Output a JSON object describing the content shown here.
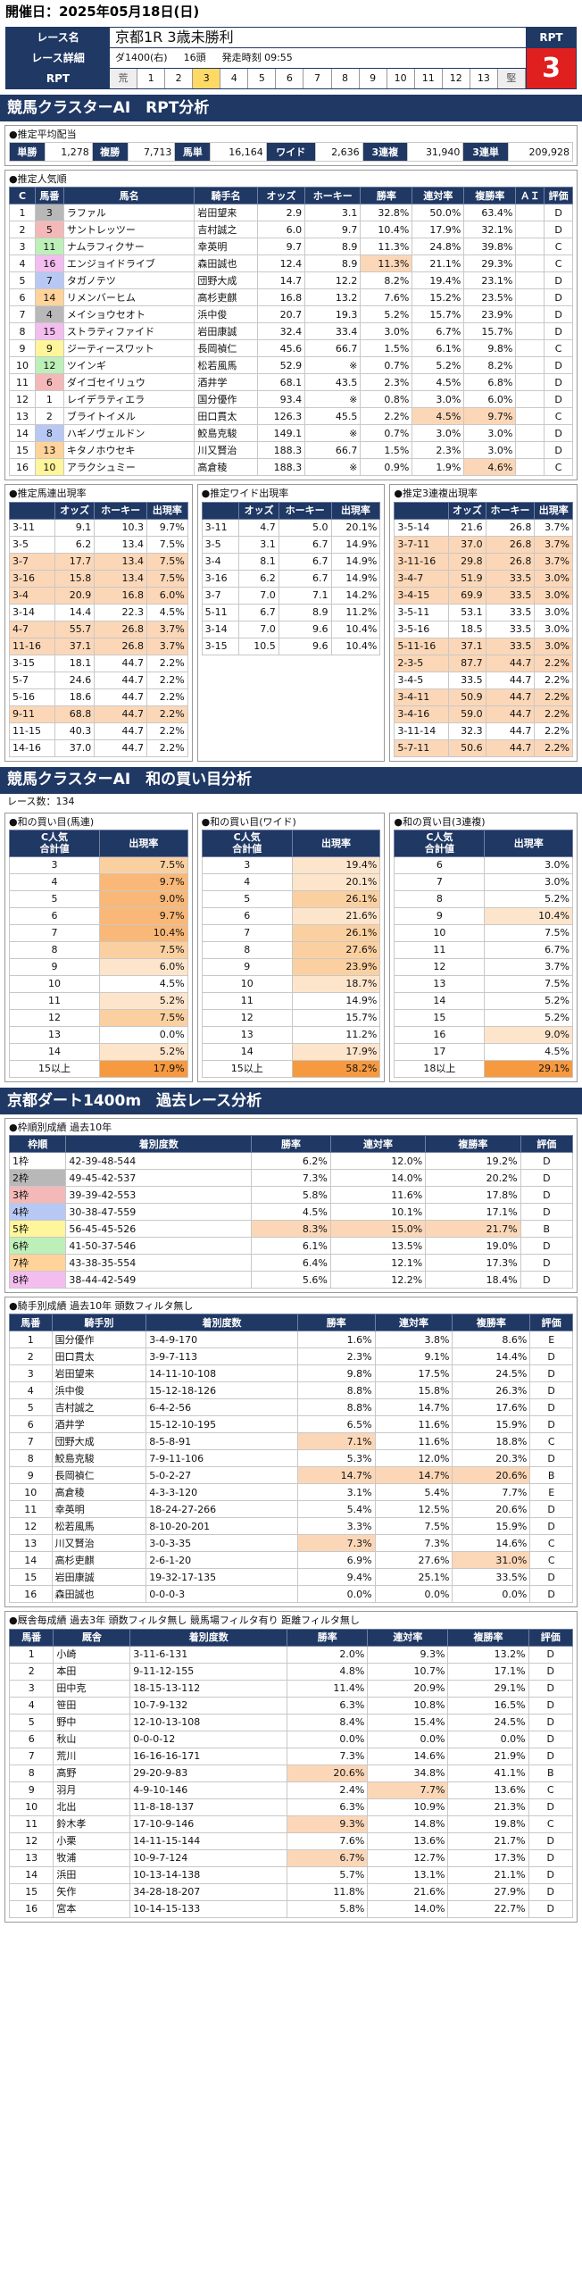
{
  "header": {
    "date": "開催日：2025年05月18日(日)"
  },
  "race": {
    "name_label": "レース名",
    "name": "京都1R 3歳未勝利",
    "detail_label": "レース詳細",
    "course": "ダ1400(右)",
    "heads": "16頭",
    "start": "発走時刻 09:55",
    "rpt_label": "RPT",
    "rpt_cells": [
      "荒",
      "1",
      "2",
      "3",
      "4",
      "5",
      "6",
      "7",
      "8",
      "9",
      "10",
      "11",
      "12",
      "13",
      "堅"
    ],
    "rpt_selected": "3",
    "rpt_value": "3"
  },
  "section1": {
    "title": "競馬クラスターAI　RPT分析"
  },
  "payout": {
    "title": "●推定平均配当",
    "items": [
      {
        "k": "単勝",
        "v": "1,278"
      },
      {
        "k": "複勝",
        "v": "7,713"
      },
      {
        "k": "馬単",
        "v": "16,164"
      },
      {
        "k": "ワイド",
        "v": "2,636"
      },
      {
        "k": "3連複",
        "v": "31,940"
      },
      {
        "k": "3連単",
        "v": "209,928"
      }
    ]
  },
  "popularity": {
    "title": "●推定人気順",
    "headers": [
      "C",
      "馬番",
      "馬名",
      "騎手名",
      "オッズ",
      "ホーキー",
      "勝率",
      "連対率",
      "複勝率",
      "ＡＩ",
      "評価"
    ],
    "rows": [
      [
        "1",
        "3",
        "ラファル",
        "岩田望来",
        "2.9",
        "3.1",
        "32.8%",
        "50.0%",
        "63.4%",
        "",
        "D"
      ],
      [
        "2",
        "5",
        "サントレッツー",
        "吉村誠之",
        "6.0",
        "9.7",
        "10.4%",
        "17.9%",
        "32.1%",
        "",
        "D"
      ],
      [
        "3",
        "11",
        "ナムラフィクサー",
        "幸英明",
        "9.7",
        "8.9",
        "11.3%",
        "24.8%",
        "39.8%",
        "",
        "C"
      ],
      [
        "4",
        "16",
        "エンジョイドライブ",
        "森田誠也",
        "12.4",
        "8.9",
        "11.3%",
        "21.1%",
        "29.3%",
        "",
        "C"
      ],
      [
        "5",
        "7",
        "タガノテツ",
        "団野大成",
        "14.7",
        "12.2",
        "8.2%",
        "19.4%",
        "23.1%",
        "",
        "D"
      ],
      [
        "6",
        "14",
        "リメンバーヒム",
        "高杉吏麒",
        "16.8",
        "13.2",
        "7.6%",
        "15.2%",
        "23.5%",
        "",
        "D"
      ],
      [
        "7",
        "4",
        "メイショウセオト",
        "浜中俊",
        "20.7",
        "19.3",
        "5.2%",
        "15.7%",
        "23.9%",
        "",
        "D"
      ],
      [
        "8",
        "15",
        "ストラティファイド",
        "岩田康誠",
        "32.4",
        "33.4",
        "3.0%",
        "6.7%",
        "15.7%",
        "",
        "D"
      ],
      [
        "9",
        "9",
        "ジーティースワット",
        "長岡禎仁",
        "45.6",
        "66.7",
        "1.5%",
        "6.1%",
        "9.8%",
        "",
        "C"
      ],
      [
        "10",
        "12",
        "ツインギ",
        "松若風馬",
        "52.9",
        "※",
        "0.7%",
        "5.2%",
        "8.2%",
        "",
        "D"
      ],
      [
        "11",
        "6",
        "ダイゴセイリュウ",
        "酒井学",
        "68.1",
        "43.5",
        "2.3%",
        "4.5%",
        "6.8%",
        "",
        "D"
      ],
      [
        "12",
        "1",
        "レイデラティエラ",
        "国分優作",
        "93.4",
        "※",
        "0.8%",
        "3.0%",
        "6.0%",
        "",
        "D"
      ],
      [
        "13",
        "2",
        "ブライトイメル",
        "田口貫太",
        "126.3",
        "45.5",
        "2.2%",
        "4.5%",
        "9.7%",
        "",
        "C"
      ],
      [
        "14",
        "8",
        "ハギノヴェルドン",
        "鮫島克駿",
        "149.1",
        "※",
        "0.7%",
        "3.0%",
        "3.0%",
        "",
        "D"
      ],
      [
        "15",
        "13",
        "キタノホウセキ",
        "川又賢治",
        "188.3",
        "66.7",
        "1.5%",
        "2.3%",
        "3.0%",
        "",
        "D"
      ],
      [
        "16",
        "10",
        "アラクシュミー",
        "高倉稜",
        "188.3",
        "※",
        "0.9%",
        "1.9%",
        "4.6%",
        "",
        "C"
      ]
    ]
  },
  "est_umatan": {
    "title": "●推定馬連出現率",
    "headers": [
      "",
      "オッズ",
      "ホーキー",
      "出現率"
    ],
    "rows": [
      [
        "3-11",
        "9.1",
        "10.3",
        "9.7%"
      ],
      [
        "3-5",
        "6.2",
        "13.4",
        "7.5%"
      ],
      [
        "3-7",
        "17.7",
        "13.4",
        "7.5%"
      ],
      [
        "3-16",
        "15.8",
        "13.4",
        "7.5%"
      ],
      [
        "3-4",
        "20.9",
        "16.8",
        "6.0%"
      ],
      [
        "3-14",
        "14.4",
        "22.3",
        "4.5%"
      ],
      [
        "4-7",
        "55.7",
        "26.8",
        "3.7%"
      ],
      [
        "11-16",
        "37.1",
        "26.8",
        "3.7%"
      ],
      [
        "3-15",
        "18.1",
        "44.7",
        "2.2%"
      ],
      [
        "5-7",
        "24.6",
        "44.7",
        "2.2%"
      ],
      [
        "5-16",
        "18.6",
        "44.7",
        "2.2%"
      ],
      [
        "9-11",
        "68.8",
        "44.7",
        "2.2%"
      ],
      [
        "11-15",
        "40.3",
        "44.7",
        "2.2%"
      ],
      [
        "14-16",
        "37.0",
        "44.7",
        "2.2%"
      ]
    ]
  },
  "est_wide": {
    "title": "●推定ワイド出現率",
    "headers": [
      "",
      "オッズ",
      "ホーキー",
      "出現率"
    ],
    "rows": [
      [
        "3-11",
        "4.7",
        "5.0",
        "20.1%"
      ],
      [
        "3-5",
        "3.1",
        "6.7",
        "14.9%"
      ],
      [
        "3-4",
        "8.1",
        "6.7",
        "14.9%"
      ],
      [
        "3-16",
        "6.2",
        "6.7",
        "14.9%"
      ],
      [
        "3-7",
        "7.0",
        "7.1",
        "14.2%"
      ],
      [
        "5-11",
        "6.7",
        "8.9",
        "11.2%"
      ],
      [
        "3-14",
        "7.0",
        "9.6",
        "10.4%"
      ],
      [
        "3-15",
        "10.5",
        "9.6",
        "10.4%"
      ]
    ]
  },
  "est_sanrenpuku": {
    "title": "●推定3連複出現率",
    "headers": [
      "",
      "オッズ",
      "ホーキー",
      "出現率"
    ],
    "rows": [
      [
        "3-5-14",
        "21.6",
        "26.8",
        "3.7%"
      ],
      [
        "3-7-11",
        "37.0",
        "26.8",
        "3.7%"
      ],
      [
        "3-11-16",
        "29.8",
        "26.8",
        "3.7%"
      ],
      [
        "3-4-7",
        "51.9",
        "33.5",
        "3.0%"
      ],
      [
        "3-4-15",
        "69.9",
        "33.5",
        "3.0%"
      ],
      [
        "3-5-11",
        "53.1",
        "33.5",
        "3.0%"
      ],
      [
        "3-5-16",
        "18.5",
        "33.5",
        "3.0%"
      ],
      [
        "5-11-16",
        "37.1",
        "33.5",
        "3.0%"
      ],
      [
        "2-3-5",
        "87.7",
        "44.7",
        "2.2%"
      ],
      [
        "3-4-5",
        "33.5",
        "44.7",
        "2.2%"
      ],
      [
        "3-4-11",
        "50.9",
        "44.7",
        "2.2%"
      ],
      [
        "3-4-16",
        "59.0",
        "44.7",
        "2.2%"
      ],
      [
        "3-11-14",
        "32.3",
        "44.7",
        "2.2%"
      ],
      [
        "5-7-11",
        "50.6",
        "44.7",
        "2.2%"
      ]
    ]
  },
  "section2": {
    "title": "競馬クラスターAI　和の買い目分析",
    "race_count": "レース数：134"
  },
  "wa_umaren": {
    "title": "●和の買い目(馬連)",
    "h1": "C人気\n合計値",
    "h2": "出現率",
    "rows": [
      [
        "3",
        "7.5%"
      ],
      [
        "4",
        "9.7%"
      ],
      [
        "5",
        "9.0%"
      ],
      [
        "6",
        "9.7%"
      ],
      [
        "7",
        "10.4%"
      ],
      [
        "8",
        "7.5%"
      ],
      [
        "9",
        "6.0%"
      ],
      [
        "10",
        "4.5%"
      ],
      [
        "11",
        "5.2%"
      ],
      [
        "12",
        "7.5%"
      ],
      [
        "13",
        "0.0%"
      ],
      [
        "14",
        "5.2%"
      ],
      [
        "15以上",
        "17.9%"
      ]
    ]
  },
  "wa_wide": {
    "title": "●和の買い目(ワイド)",
    "h1": "C人気\n合計値",
    "h2": "出現率",
    "rows": [
      [
        "3",
        "19.4%"
      ],
      [
        "4",
        "20.1%"
      ],
      [
        "5",
        "26.1%"
      ],
      [
        "6",
        "21.6%"
      ],
      [
        "7",
        "26.1%"
      ],
      [
        "8",
        "27.6%"
      ],
      [
        "9",
        "23.9%"
      ],
      [
        "10",
        "18.7%"
      ],
      [
        "11",
        "14.9%"
      ],
      [
        "12",
        "15.7%"
      ],
      [
        "13",
        "11.2%"
      ],
      [
        "14",
        "17.9%"
      ],
      [
        "15以上",
        "58.2%"
      ]
    ]
  },
  "wa_3renpuku": {
    "title": "●和の買い目(3連複)",
    "h1": "C人気\n合計値",
    "h2": "出現率",
    "rows": [
      [
        "6",
        "3.0%"
      ],
      [
        "7",
        "3.0%"
      ],
      [
        "8",
        "5.2%"
      ],
      [
        "9",
        "10.4%"
      ],
      [
        "10",
        "7.5%"
      ],
      [
        "11",
        "6.7%"
      ],
      [
        "12",
        "3.7%"
      ],
      [
        "13",
        "7.5%"
      ],
      [
        "14",
        "5.2%"
      ],
      [
        "15",
        "5.2%"
      ],
      [
        "16",
        "9.0%"
      ],
      [
        "17",
        "4.5%"
      ],
      [
        "18以上",
        "29.1%"
      ]
    ]
  },
  "section3": {
    "title": "京都ダート1400m　過去レース分析"
  },
  "waku": {
    "title": "●枠順別成績 過去10年",
    "headers": [
      "枠順",
      "着別度数",
      "勝率",
      "連対率",
      "複勝率",
      "評価"
    ],
    "rows": [
      [
        "1枠",
        "42-39-48-544",
        "6.2%",
        "12.0%",
        "19.2%",
        "D"
      ],
      [
        "2枠",
        "49-45-42-537",
        "7.3%",
        "14.0%",
        "20.2%",
        "D"
      ],
      [
        "3枠",
        "39-39-42-553",
        "5.8%",
        "11.6%",
        "17.8%",
        "D"
      ],
      [
        "4枠",
        "30-38-47-559",
        "4.5%",
        "10.1%",
        "17.1%",
        "D"
      ],
      [
        "5枠",
        "56-45-45-526",
        "8.3%",
        "15.0%",
        "21.7%",
        "B"
      ],
      [
        "6枠",
        "41-50-37-546",
        "6.1%",
        "13.5%",
        "19.0%",
        "D"
      ],
      [
        "7枠",
        "43-38-35-554",
        "6.4%",
        "12.1%",
        "17.3%",
        "D"
      ],
      [
        "8枠",
        "38-44-42-549",
        "5.6%",
        "12.2%",
        "18.4%",
        "D"
      ]
    ],
    "colors": [
      "#ffffff",
      "#b8b8b8",
      "#f4b8b8",
      "#b8c8f4",
      "#fff59a",
      "#bdf0b8",
      "#ffd39a",
      "#f4bdf0"
    ]
  },
  "jockey": {
    "title": "●騎手別成績 過去10年 頭数フィルタ無し",
    "headers": [
      "馬番",
      "騎手別",
      "着別度数",
      "勝率",
      "連対率",
      "複勝率",
      "評価"
    ],
    "rows": [
      [
        "1",
        "国分優作",
        "3-4-9-170",
        "1.6%",
        "3.8%",
        "8.6%",
        "E"
      ],
      [
        "2",
        "田口貫太",
        "3-9-7-113",
        "2.3%",
        "9.1%",
        "14.4%",
        "D"
      ],
      [
        "3",
        "岩田望来",
        "14-11-10-108",
        "9.8%",
        "17.5%",
        "24.5%",
        "D"
      ],
      [
        "4",
        "浜中俊",
        "15-12-18-126",
        "8.8%",
        "15.8%",
        "26.3%",
        "D"
      ],
      [
        "5",
        "吉村誠之",
        "6-4-2-56",
        "8.8%",
        "14.7%",
        "17.6%",
        "D"
      ],
      [
        "6",
        "酒井学",
        "15-12-10-195",
        "6.5%",
        "11.6%",
        "15.9%",
        "D"
      ],
      [
        "7",
        "団野大成",
        "8-5-8-91",
        "7.1%",
        "11.6%",
        "18.8%",
        "C"
      ],
      [
        "8",
        "鮫島克駿",
        "7-9-11-106",
        "5.3%",
        "12.0%",
        "20.3%",
        "D"
      ],
      [
        "9",
        "長岡禎仁",
        "5-0-2-27",
        "14.7%",
        "14.7%",
        "20.6%",
        "B"
      ],
      [
        "10",
        "高倉稜",
        "4-3-3-120",
        "3.1%",
        "5.4%",
        "7.7%",
        "E"
      ],
      [
        "11",
        "幸英明",
        "18-24-27-266",
        "5.4%",
        "12.5%",
        "20.6%",
        "D"
      ],
      [
        "12",
        "松若風馬",
        "8-10-20-201",
        "3.3%",
        "7.5%",
        "15.9%",
        "D"
      ],
      [
        "13",
        "川又賢治",
        "3-0-3-35",
        "7.3%",
        "7.3%",
        "14.6%",
        "C"
      ],
      [
        "14",
        "高杉吏麒",
        "2-6-1-20",
        "6.9%",
        "27.6%",
        "31.0%",
        "C"
      ],
      [
        "15",
        "岩田康誠",
        "19-32-17-135",
        "9.4%",
        "25.1%",
        "33.5%",
        "D"
      ],
      [
        "16",
        "森田誠也",
        "0-0-0-3",
        "0.0%",
        "0.0%",
        "0.0%",
        "D"
      ]
    ]
  },
  "trainer": {
    "title": "●厩舎毎成績 過去3年 頭数フィルタ無し 競馬場フィルタ有り 距離フィルタ無し",
    "headers": [
      "馬番",
      "厩舎",
      "着別度数",
      "勝率",
      "連対率",
      "複勝率",
      "評価"
    ],
    "rows": [
      [
        "1",
        "小崎",
        "3-11-6-131",
        "2.0%",
        "9.3%",
        "13.2%",
        "D"
      ],
      [
        "2",
        "本田",
        "9-11-12-155",
        "4.8%",
        "10.7%",
        "17.1%",
        "D"
      ],
      [
        "3",
        "田中克",
        "18-15-13-112",
        "11.4%",
        "20.9%",
        "29.1%",
        "D"
      ],
      [
        "4",
        "笹田",
        "10-7-9-132",
        "6.3%",
        "10.8%",
        "16.5%",
        "D"
      ],
      [
        "5",
        "野中",
        "12-10-13-108",
        "8.4%",
        "15.4%",
        "24.5%",
        "D"
      ],
      [
        "6",
        "秋山",
        "0-0-0-12",
        "0.0%",
        "0.0%",
        "0.0%",
        "D"
      ],
      [
        "7",
        "荒川",
        "16-16-16-171",
        "7.3%",
        "14.6%",
        "21.9%",
        "D"
      ],
      [
        "8",
        "高野",
        "29-20-9-83",
        "20.6%",
        "34.8%",
        "41.1%",
        "B"
      ],
      [
        "9",
        "羽月",
        "4-9-10-146",
        "2.4%",
        "7.7%",
        "13.6%",
        "C"
      ],
      [
        "10",
        "北出",
        "11-8-18-137",
        "6.3%",
        "10.9%",
        "21.3%",
        "D"
      ],
      [
        "11",
        "鈴木孝",
        "17-10-9-146",
        "9.3%",
        "14.8%",
        "19.8%",
        "C"
      ],
      [
        "12",
        "小栗",
        "14-11-15-144",
        "7.6%",
        "13.6%",
        "21.7%",
        "D"
      ],
      [
        "13",
        "牧浦",
        "10-9-7-124",
        "6.7%",
        "12.7%",
        "17.3%",
        "D"
      ],
      [
        "14",
        "浜田",
        "10-13-14-138",
        "5.7%",
        "13.1%",
        "21.1%",
        "D"
      ],
      [
        "15",
        "矢作",
        "34-28-18-207",
        "11.8%",
        "21.6%",
        "27.9%",
        "D"
      ],
      [
        "16",
        "宮本",
        "10-14-15-133",
        "5.8%",
        "14.0%",
        "22.7%",
        "D"
      ]
    ]
  }
}
